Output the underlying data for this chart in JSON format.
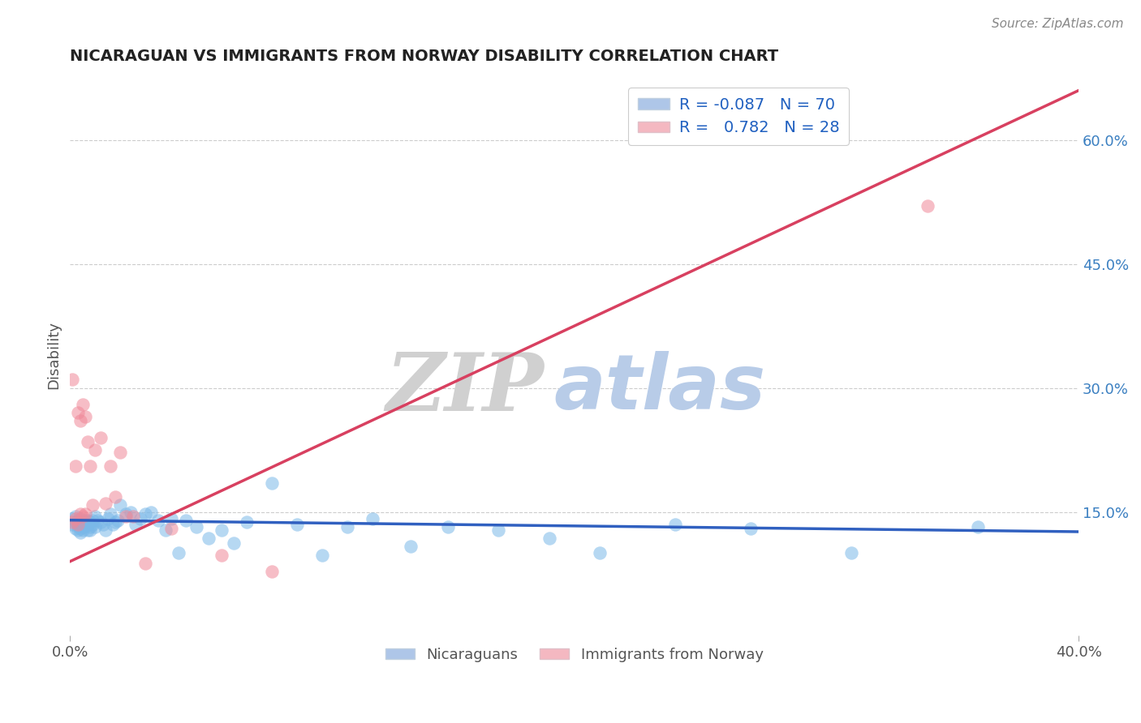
{
  "title": "NICARAGUAN VS IMMIGRANTS FROM NORWAY DISABILITY CORRELATION CHART",
  "source": "Source: ZipAtlas.com",
  "ylabel": "Disability",
  "right_yticks": [
    0.15,
    0.3,
    0.45,
    0.6
  ],
  "right_yticklabels": [
    "15.0%",
    "30.0%",
    "45.0%",
    "60.0%"
  ],
  "xlim": [
    0.0,
    0.4
  ],
  "ylim": [
    0.0,
    0.68
  ],
  "grid_color": "#cccccc",
  "background_color": "#ffffff",
  "dot_color_blue": "#7ab8e8",
  "dot_color_pink": "#f08898",
  "line_color_blue": "#3060c0",
  "line_color_pink": "#d84060",
  "blue_scatter": {
    "x": [
      0.001,
      0.001,
      0.002,
      0.002,
      0.002,
      0.003,
      0.003,
      0.003,
      0.003,
      0.004,
      0.004,
      0.004,
      0.004,
      0.005,
      0.005,
      0.005,
      0.005,
      0.006,
      0.006,
      0.006,
      0.007,
      0.007,
      0.007,
      0.008,
      0.008,
      0.008,
      0.009,
      0.009,
      0.01,
      0.01,
      0.011,
      0.012,
      0.013,
      0.014,
      0.015,
      0.016,
      0.017,
      0.018,
      0.019,
      0.02,
      0.022,
      0.024,
      0.026,
      0.028,
      0.03,
      0.032,
      0.035,
      0.038,
      0.04,
      0.043,
      0.046,
      0.05,
      0.055,
      0.06,
      0.065,
      0.07,
      0.08,
      0.09,
      0.1,
      0.11,
      0.12,
      0.135,
      0.15,
      0.17,
      0.19,
      0.21,
      0.24,
      0.27,
      0.31,
      0.36
    ],
    "y": [
      0.135,
      0.142,
      0.138,
      0.13,
      0.145,
      0.14,
      0.133,
      0.128,
      0.136,
      0.142,
      0.135,
      0.13,
      0.125,
      0.138,
      0.132,
      0.14,
      0.128,
      0.14,
      0.133,
      0.136,
      0.128,
      0.135,
      0.14,
      0.138,
      0.132,
      0.128,
      0.135,
      0.14,
      0.145,
      0.132,
      0.14,
      0.138,
      0.135,
      0.128,
      0.142,
      0.148,
      0.135,
      0.138,
      0.14,
      0.158,
      0.148,
      0.15,
      0.135,
      0.142,
      0.148,
      0.15,
      0.14,
      0.128,
      0.142,
      0.1,
      0.14,
      0.132,
      0.118,
      0.128,
      0.112,
      0.138,
      0.185,
      0.135,
      0.098,
      0.132,
      0.142,
      0.108,
      0.132,
      0.128,
      0.118,
      0.1,
      0.135,
      0.13,
      0.1,
      0.132
    ]
  },
  "pink_scatter": {
    "x": [
      0.001,
      0.001,
      0.002,
      0.002,
      0.003,
      0.003,
      0.004,
      0.004,
      0.005,
      0.005,
      0.006,
      0.006,
      0.007,
      0.008,
      0.009,
      0.01,
      0.012,
      0.014,
      0.016,
      0.018,
      0.02,
      0.022,
      0.025,
      0.03,
      0.04,
      0.06,
      0.08,
      0.34
    ],
    "y": [
      0.138,
      0.31,
      0.142,
      0.205,
      0.135,
      0.27,
      0.148,
      0.26,
      0.145,
      0.28,
      0.265,
      0.148,
      0.235,
      0.205,
      0.158,
      0.225,
      0.24,
      0.16,
      0.205,
      0.168,
      0.222,
      0.145,
      0.145,
      0.088,
      0.13,
      0.098,
      0.078,
      0.52
    ]
  },
  "blue_line": {
    "x0": 0.0,
    "y0": 0.14,
    "x1": 0.4,
    "y1": 0.126
  },
  "pink_line": {
    "x0": 0.0,
    "y0": 0.09,
    "x1": 0.4,
    "y1": 0.66
  }
}
